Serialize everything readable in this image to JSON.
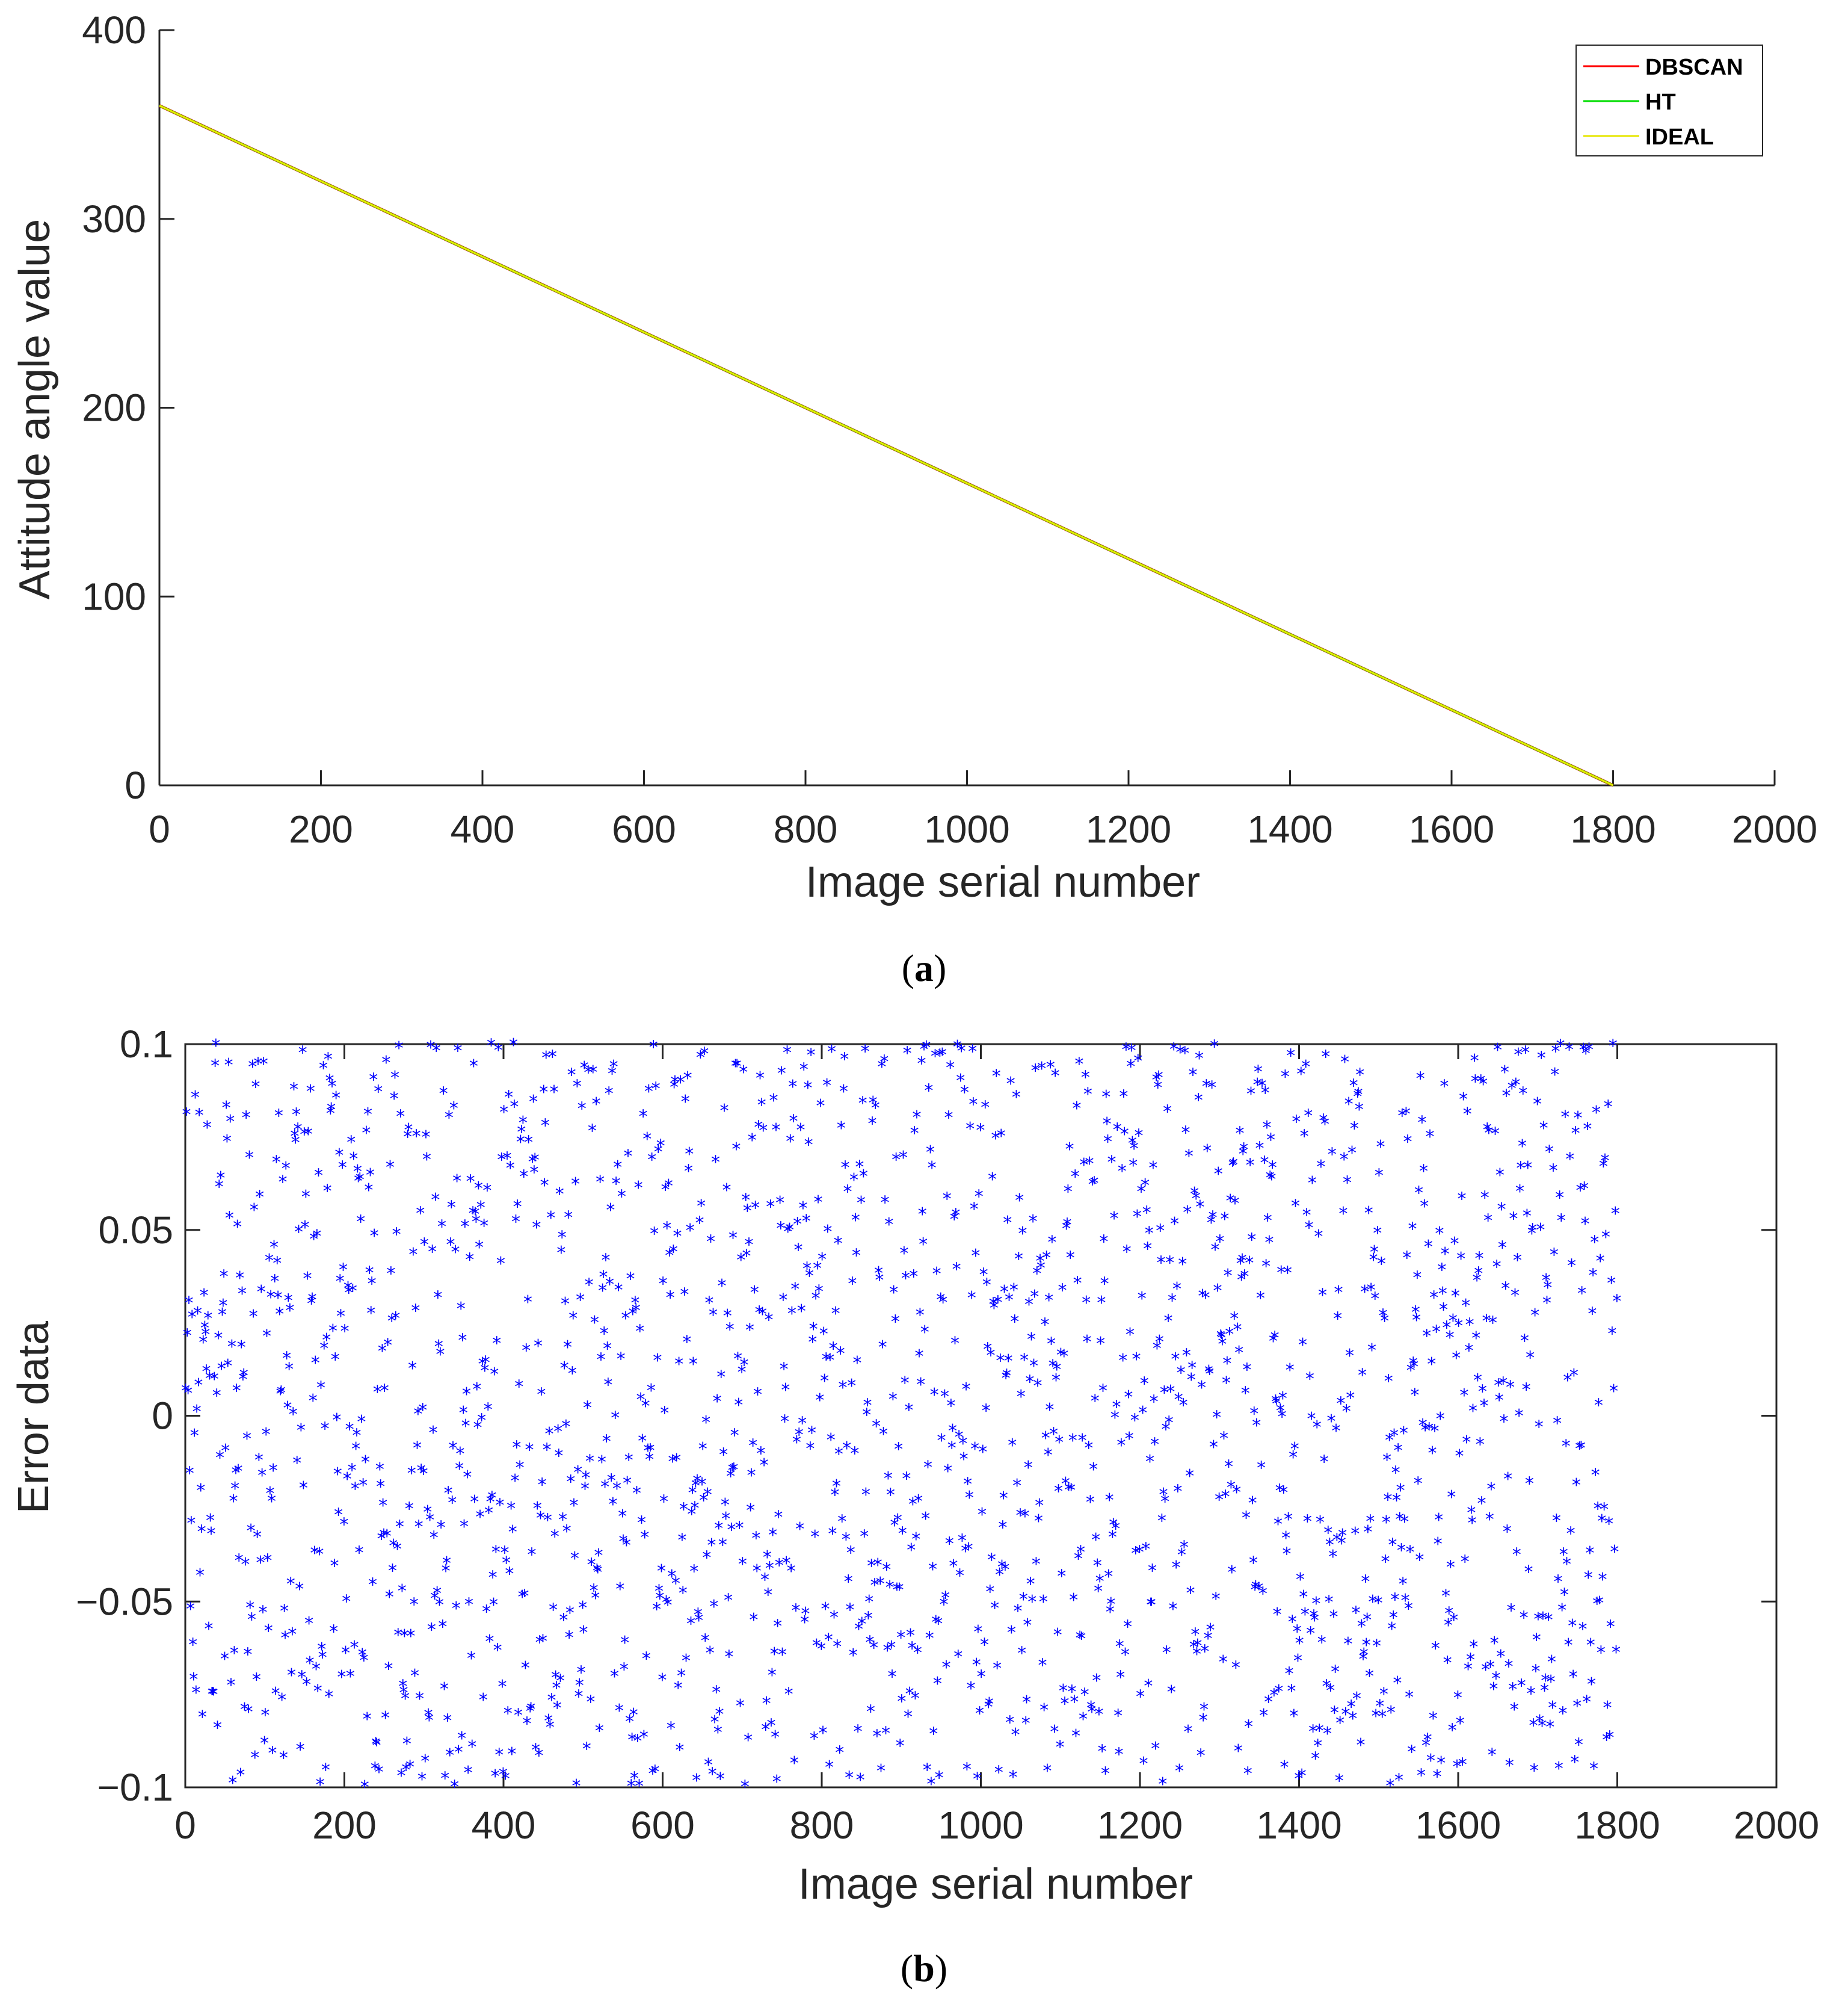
{
  "chart_data": [
    {
      "panel": "a",
      "type": "line",
      "caption": "a",
      "xlabel": "Image serial number",
      "ylabel": "Attitude angle value",
      "xlim": [
        0,
        2000
      ],
      "ylim": [
        0,
        400
      ],
      "xticks": [
        "0",
        "200",
        "400",
        "600",
        "800",
        "1000",
        "1200",
        "1400",
        "1600",
        "1800",
        "2000"
      ],
      "yticks": [
        "0",
        "100",
        "200",
        "300",
        "400"
      ],
      "legend_position": "top-right",
      "series": [
        {
          "name": "DBSCAN",
          "color": "#ff0000",
          "x": [
            0,
            1800
          ],
          "y": [
            360,
            0
          ]
        },
        {
          "name": "HT",
          "color": "#00dd00",
          "x": [
            0,
            1800
          ],
          "y": [
            360,
            0
          ]
        },
        {
          "name": "IDEAL",
          "color": "#e6e600",
          "x": [
            0,
            1800
          ],
          "y": [
            360,
            0
          ]
        }
      ]
    },
    {
      "panel": "b",
      "type": "scatter",
      "caption": "b",
      "xlabel": "Image serial number",
      "ylabel": "Error data",
      "xlim": [
        0,
        2000
      ],
      "ylim": [
        -0.1,
        0.1
      ],
      "xticks": [
        "0",
        "200",
        "400",
        "600",
        "800",
        "1000",
        "1200",
        "1400",
        "1600",
        "1800",
        "2000"
      ],
      "yticks": [
        "−0.1",
        "−0.05",
        "0",
        "0.05",
        "0.1"
      ],
      "marker": "*",
      "marker_color": "#0000ff",
      "points_count": 1800,
      "x_range": [
        0,
        1800
      ],
      "y_range": [
        -0.1,
        0.1
      ],
      "distribution": "uniform random"
    }
  ]
}
